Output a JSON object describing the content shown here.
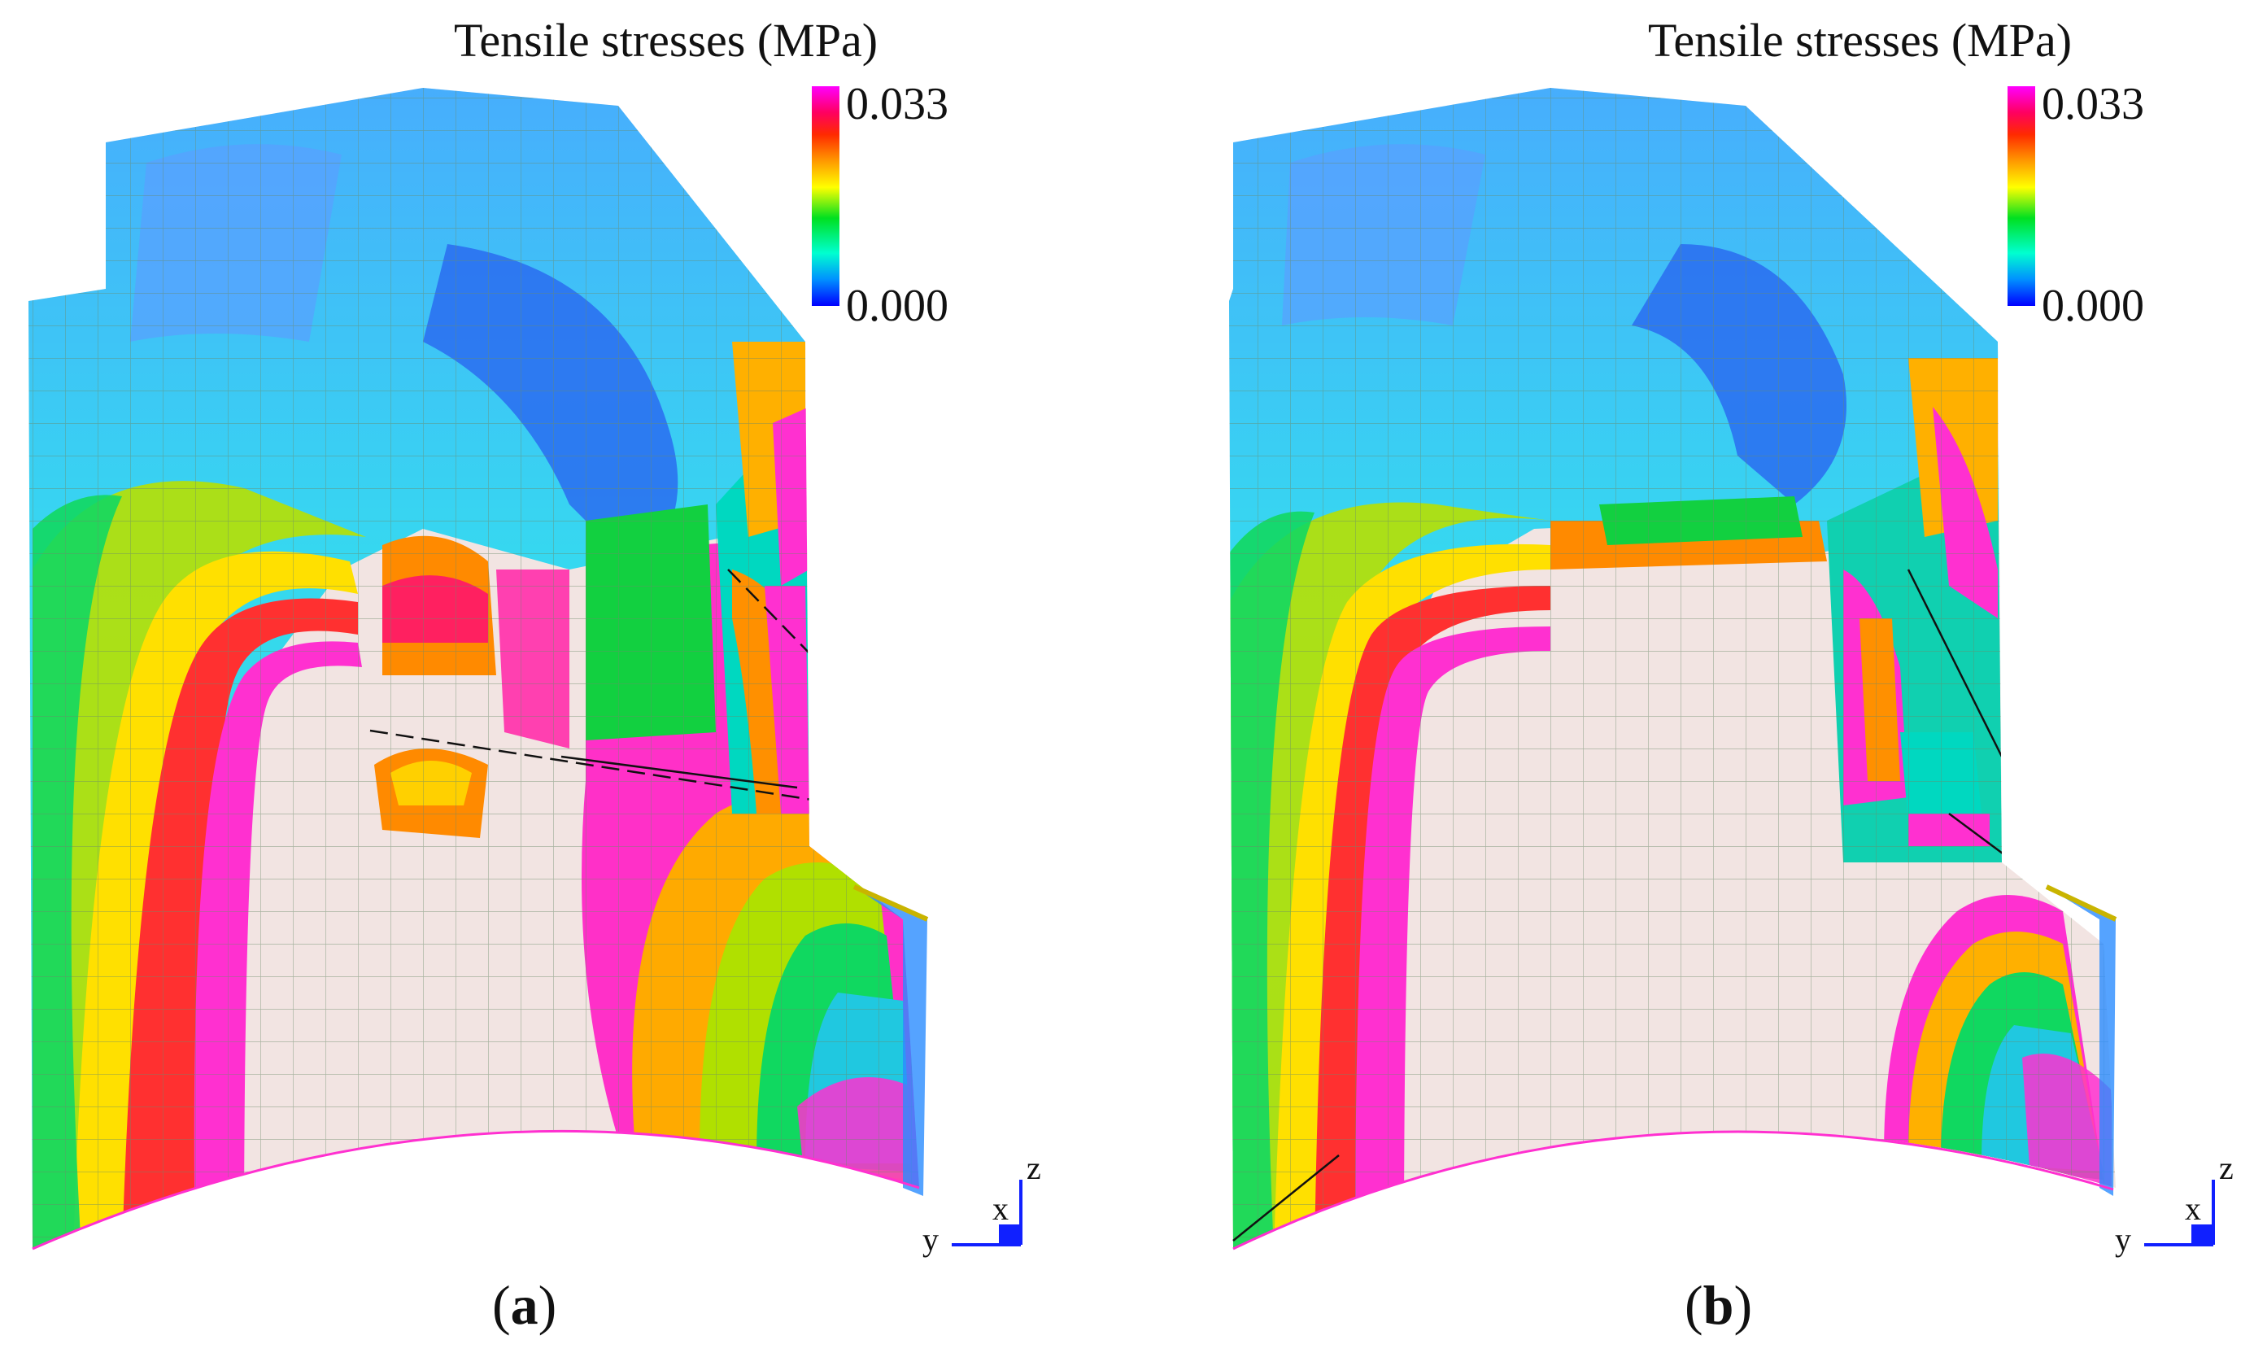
{
  "legend": {
    "title": "Tensile stresses (MPa)",
    "max_label": "0.033",
    "min_label": "0.000"
  },
  "axes": {
    "x": "x",
    "y": "y",
    "z": "z"
  },
  "panels": [
    {
      "id": "a",
      "caption_open": "(",
      "caption_letter": "a",
      "caption_close": ")"
    },
    {
      "id": "b",
      "caption_open": "(",
      "caption_letter": "b",
      "caption_close": ")"
    }
  ],
  "colors": {
    "cold": "#1e64ff",
    "cyan": "#00e0e0",
    "green": "#1fd81f",
    "yellow": "#f5f500",
    "red": "#ff2020",
    "magenta": "#ff20d0",
    "uncracked": "#f2e4e2"
  }
}
